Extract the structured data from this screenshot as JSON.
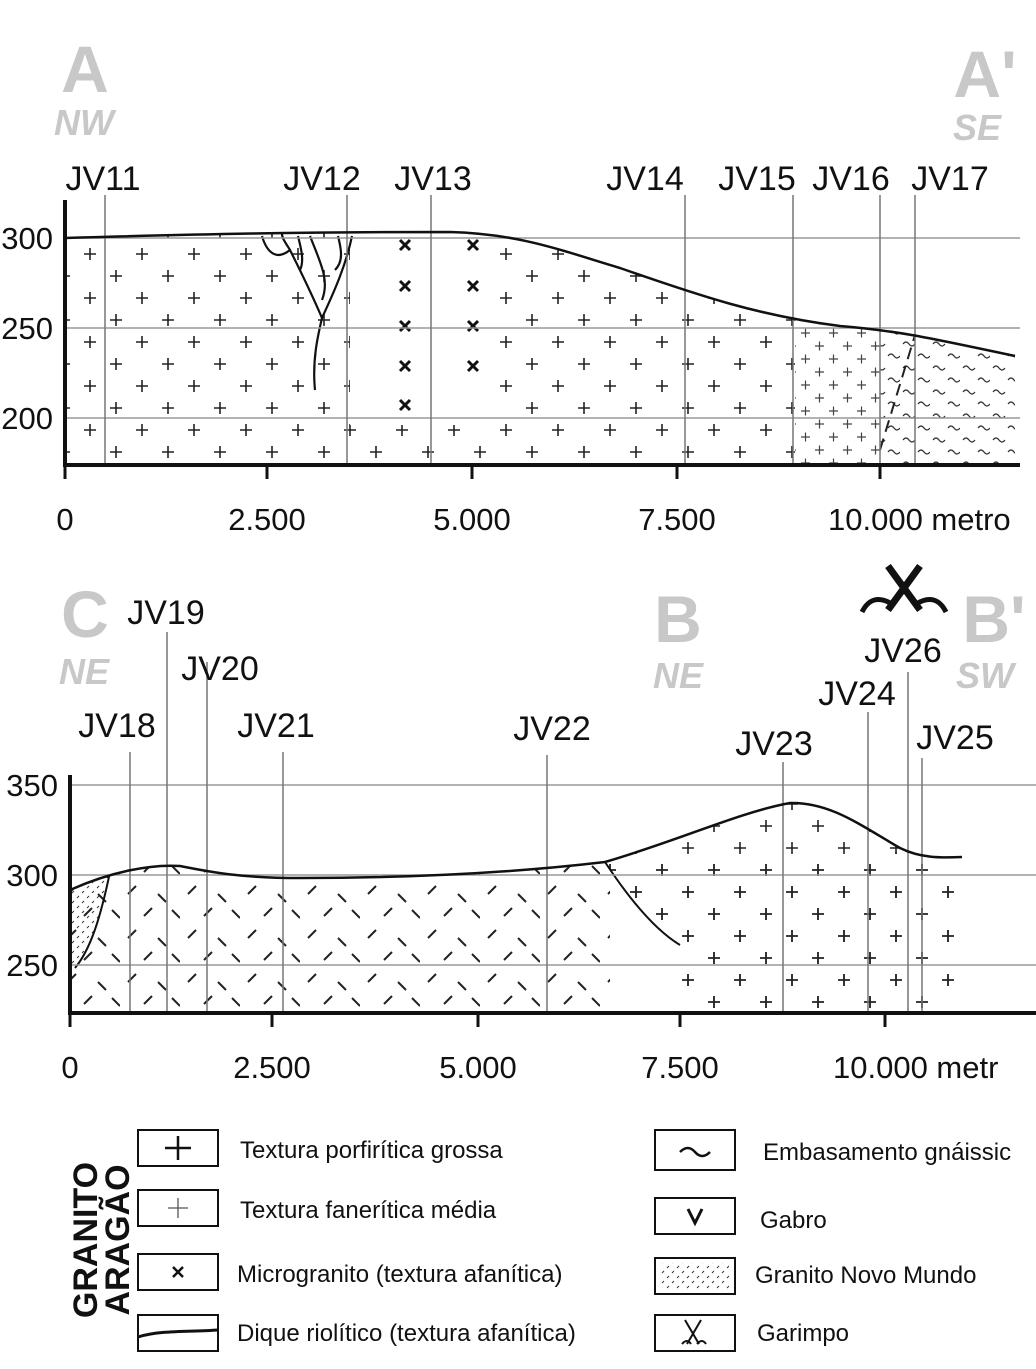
{
  "section1": {
    "start": {
      "letter": "A",
      "direction": "NW"
    },
    "end": {
      "letter": "A'",
      "direction": "SE"
    },
    "wells": [
      "JV11",
      "JV12",
      "JV13",
      "JV14",
      "JV15",
      "JV16",
      "JV17"
    ],
    "y_labels": [
      "300",
      "250",
      "200"
    ],
    "x_labels": [
      "0",
      "2.500",
      "5.000",
      "7.500",
      "10.000 metro"
    ]
  },
  "section2": {
    "start": {
      "letter": "C",
      "direction": "NE"
    },
    "mid": {
      "letter": "B",
      "direction": "NE"
    },
    "end": {
      "letter": "B'",
      "direction": "SW"
    },
    "wells": [
      "JV18",
      "JV19",
      "JV20",
      "JV21",
      "JV22",
      "JV23",
      "JV24",
      "JV26",
      "JV25"
    ],
    "y_labels": [
      "350",
      "300",
      "250"
    ],
    "x_labels": [
      "0",
      "2.500",
      "5.000",
      "7.500",
      "10.000 metr"
    ]
  },
  "legend": {
    "group": [
      "GRANITO",
      "ARAGÃO"
    ],
    "items": [
      "Textura porfirítica grossa",
      "Textura fanerítica média",
      "Microgranito (textura afanítica)",
      "Dique riolítico (textura afanítica)",
      "Embasamento gnáissic",
      "Gabro",
      "Granito Novo Mundo",
      "Garimpo"
    ]
  }
}
